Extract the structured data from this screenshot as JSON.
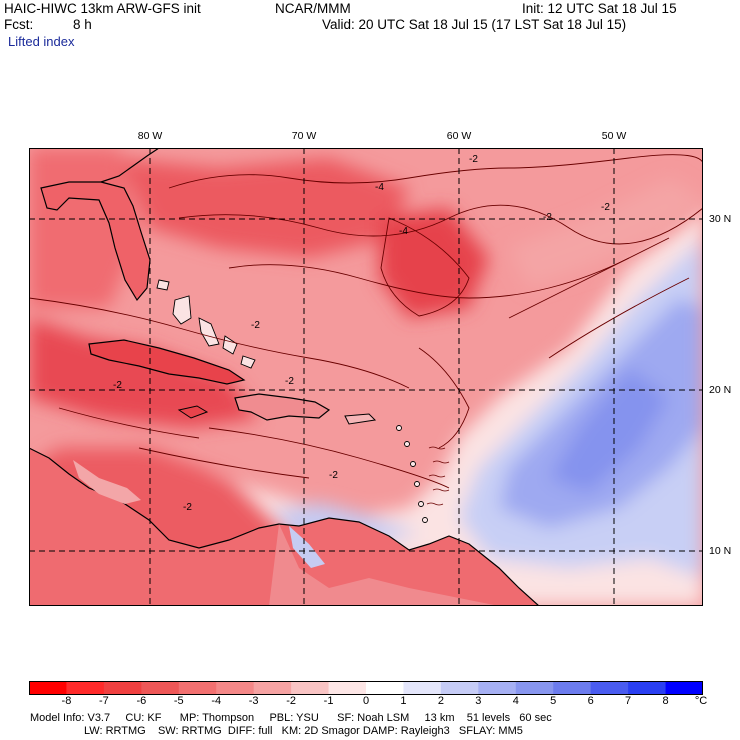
{
  "header": {
    "model_title": "HAIC-HIWC 13km ARW-GFS init",
    "center": "NCAR/MMM",
    "init": "Init: 12 UTC Sat 18 Jul 15",
    "fcst_label": "Fcst:",
    "fcst_value": "8 h",
    "valid": "Valid: 20 UTC Sat 18 Jul 15 (17 LST Sat 18 Jul 15)",
    "field": "Lifted index"
  },
  "map": {
    "lon_labels": [
      "80 W",
      "70 W",
      "60 W",
      "50 W"
    ],
    "lat_labels": [
      "30 N",
      "20 N",
      "10 N"
    ],
    "contour_labels": [
      "-4",
      "-2",
      "-2",
      "-2",
      "-2",
      "-4",
      "-2",
      "-2",
      "-2",
      "-2"
    ],
    "colors": {
      "strong_unstable": "#e8394a",
      "unstable": "#f27b80",
      "weak": "#f8c4c4",
      "neutral": "#fbecec",
      "stable": "#b8c2f2",
      "very_stable": "#7b8ef0",
      "coast": "#000000",
      "contour": "#6a0000"
    }
  },
  "legend": {
    "ticks": [
      "-8",
      "-7",
      "-6",
      "-5",
      "-4",
      "-3",
      "-2",
      "-1",
      "0",
      "1",
      "2",
      "3",
      "4",
      "5",
      "6",
      "7",
      "8"
    ],
    "unit": "°C",
    "colors": [
      "#ff0000",
      "#ff2a2a",
      "#f04040",
      "#ee5757",
      "#f27070",
      "#f48888",
      "#f6a3a3",
      "#f9c4c4",
      "#fde6e6",
      "#ffffff",
      "#e4e6fb",
      "#c6ccf6",
      "#a6b0f3",
      "#8896ef",
      "#6c7cee",
      "#4a5cf0",
      "#2a3ff2",
      "#0000ff"
    ]
  },
  "footer": {
    "line1": "Model Info: V3.7     CU: KF      MP: Thompson     PBL: YSU      SF: Noah LSM     13 km    51 levels   60 sec",
    "line2": "LW: RRTMG    SW: RRTMG  DIFF: full   KM: 2D Smagor DAMP: Rayleigh3   SFLAY: MM5"
  }
}
